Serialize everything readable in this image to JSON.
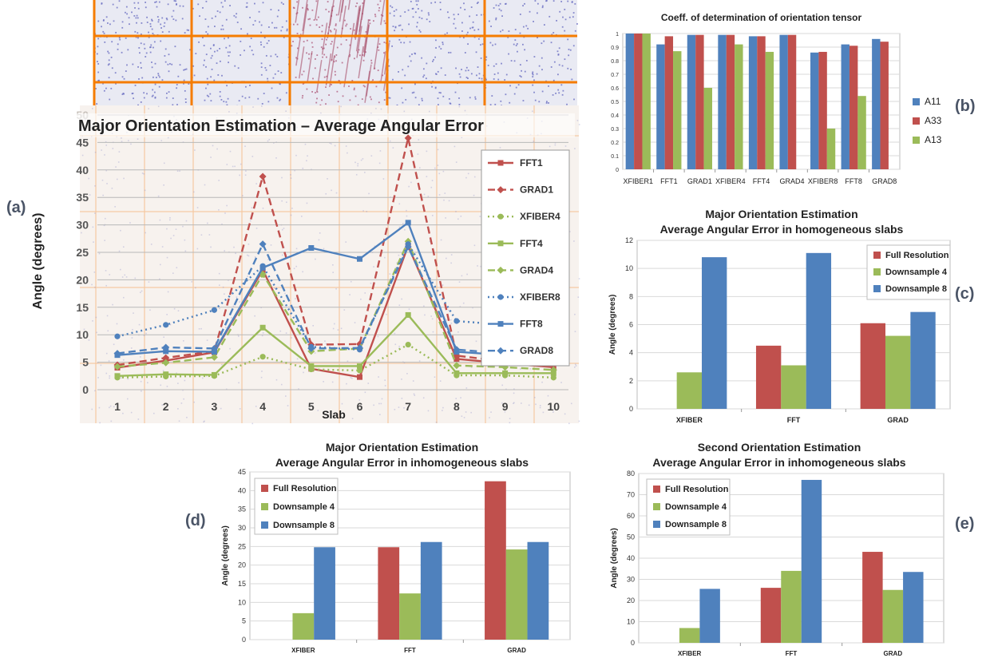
{
  "panel_labels": {
    "a": "(a)",
    "b": "(b)",
    "c": "(c)",
    "d": "(d)",
    "e": "(e)"
  },
  "colors": {
    "red": "#c0504d",
    "green": "#9bbb59",
    "blue": "#4f81bd",
    "grid_orange": "#f57c00"
  },
  "chart_data": [
    {
      "id": "a",
      "type": "line",
      "title": "Major Orientation Estimation – Average Angular Error",
      "xlabel": "Slab",
      "ylabel": "Angle (degrees)",
      "x": [
        1,
        2,
        3,
        4,
        5,
        6,
        7,
        8,
        9,
        10
      ],
      "ylim": [
        0,
        50
      ],
      "yticks": [
        0,
        5,
        10,
        15,
        20,
        25,
        30,
        35,
        40,
        45,
        50
      ],
      "legend_position": "right",
      "series": [
        {
          "name": "FFT1",
          "color": "#c0504d",
          "style": "solid",
          "marker": "square",
          "values": [
            4,
            5.3,
            6.8,
            21.8,
            3.8,
            2.3,
            26.2,
            5.6,
            4.8,
            4.1
          ]
        },
        {
          "name": "GRAD1",
          "color": "#c0504d",
          "style": "dashed",
          "marker": "diamond",
          "values": [
            4.5,
            5.8,
            7,
            38.8,
            8.2,
            8.3,
            45.8,
            6.2,
            5.1,
            4.5
          ]
        },
        {
          "name": "XFIBER4",
          "color": "#9bbb59",
          "style": "dotted",
          "marker": "circle",
          "values": [
            2.2,
            2.4,
            2.5,
            6,
            3.7,
            3.5,
            8.2,
            2.6,
            2.6,
            2.2
          ]
        },
        {
          "name": "FFT4",
          "color": "#9bbb59",
          "style": "solid",
          "marker": "square",
          "values": [
            2.5,
            2.8,
            2.7,
            11.3,
            4.3,
            4.3,
            13.6,
            3,
            3,
            3
          ]
        },
        {
          "name": "GRAD4",
          "color": "#9bbb59",
          "style": "dashed",
          "marker": "diamond",
          "values": [
            4.2,
            4.9,
            5.9,
            21,
            7,
            7.5,
            27,
            4.4,
            4.1,
            3.6
          ]
        },
        {
          "name": "XFIBER8",
          "color": "#4f81bd",
          "style": "dotted",
          "marker": "circle",
          "values": [
            9.7,
            11.8,
            14.5,
            22.5,
            7.8,
            7.3,
            26.5,
            12.5,
            11.8,
            11
          ]
        },
        {
          "name": "FFT8",
          "color": "#4f81bd",
          "style": "solid",
          "marker": "square",
          "values": [
            6.3,
            7,
            6.9,
            22.2,
            25.8,
            23.8,
            30.4,
            6.9,
            6.3,
            6.2
          ]
        },
        {
          "name": "GRAD8",
          "color": "#4f81bd",
          "style": "dashed",
          "marker": "diamond",
          "values": [
            6.6,
            7.7,
            7.5,
            26.5,
            7.5,
            7.6,
            26,
            7.3,
            6.6,
            6.5
          ]
        }
      ]
    },
    {
      "id": "b",
      "type": "bar",
      "title": "Coeff. of determination of orientation tensor",
      "categories": [
        "XFIBER1",
        "FFT1",
        "GRAD1",
        "XFIBER4",
        "FFT4",
        "GRAD4",
        "XFIBER8",
        "FFT8",
        "GRAD8"
      ],
      "ylim": [
        0,
        1
      ],
      "yticks": [
        "0",
        "0.1",
        "0.2",
        "0.3",
        "0.4",
        "0.5",
        "0.6",
        "0.7",
        "0.8",
        "0.9",
        "1"
      ],
      "legend_position": "right",
      "series": [
        {
          "name": "A11",
          "color": "#4f81bd",
          "values": [
            1,
            0.92,
            0.99,
            0.99,
            0.98,
            0.99,
            0.86,
            0.92,
            0.96
          ]
        },
        {
          "name": "A33",
          "color": "#c0504d",
          "values": [
            1,
            0.98,
            0.99,
            0.99,
            0.98,
            0.99,
            0.865,
            0.91,
            0.94
          ]
        },
        {
          "name": "A13",
          "color": "#9bbb59",
          "values": [
            1,
            0.87,
            0.6,
            0.92,
            0.865,
            null,
            0.3,
            0.54,
            null
          ]
        }
      ]
    },
    {
      "id": "c",
      "type": "bar",
      "title": "Major Orientation Estimation",
      "subtitle": "Average Angular Error in homogeneous slabs",
      "ylabel": "Angle (degrees)",
      "categories": [
        "XFIBER",
        "FFT",
        "GRAD"
      ],
      "ylim": [
        0,
        12
      ],
      "yticks": [
        0,
        2,
        4,
        6,
        8,
        10,
        12
      ],
      "legend_position": "top-right",
      "series": [
        {
          "name": "Full Resolution",
          "color": "#c0504d",
          "values": [
            null,
            4.5,
            6.1
          ]
        },
        {
          "name": "Downsample 4",
          "color": "#9bbb59",
          "values": [
            2.6,
            3.1,
            5.2
          ]
        },
        {
          "name": "Downsample 8",
          "color": "#4f81bd",
          "values": [
            10.8,
            11.1,
            6.9
          ]
        }
      ]
    },
    {
      "id": "d",
      "type": "bar",
      "title": "Major Orientation Estimation",
      "subtitle": "Average Angular Error in inhomogeneous slabs",
      "ylabel": "Angle (degrees)",
      "categories": [
        "XFIBER",
        "FFT",
        "GRAD"
      ],
      "ylim": [
        0,
        45
      ],
      "yticks": [
        0,
        5,
        10,
        15,
        20,
        25,
        30,
        35,
        40,
        45
      ],
      "legend_position": "top-left",
      "series": [
        {
          "name": "Full Resolution",
          "color": "#c0504d",
          "values": [
            null,
            24.8,
            42.5
          ]
        },
        {
          "name": "Downsample 4",
          "color": "#9bbb59",
          "values": [
            7.1,
            12.4,
            24.2
          ]
        },
        {
          "name": "Downsample 8",
          "color": "#4f81bd",
          "values": [
            24.8,
            26.2,
            26.2
          ]
        }
      ]
    },
    {
      "id": "e",
      "type": "bar",
      "title": "Second Orientation Estimation",
      "subtitle": "Average Angular Error in inhomogeneous slabs",
      "ylabel": "Angle (degrees)",
      "categories": [
        "XFIBER",
        "FFT",
        "GRAD"
      ],
      "ylim": [
        0,
        80
      ],
      "yticks": [
        0,
        10,
        20,
        30,
        40,
        50,
        60,
        70,
        80
      ],
      "legend_position": "top-left",
      "series": [
        {
          "name": "Full Resolution",
          "color": "#c0504d",
          "values": [
            null,
            26,
            43
          ]
        },
        {
          "name": "Downsample 4",
          "color": "#9bbb59",
          "values": [
            7,
            34,
            25
          ]
        },
        {
          "name": "Downsample 8",
          "color": "#4f81bd",
          "values": [
            25.5,
            77,
            33.5
          ]
        }
      ]
    }
  ]
}
